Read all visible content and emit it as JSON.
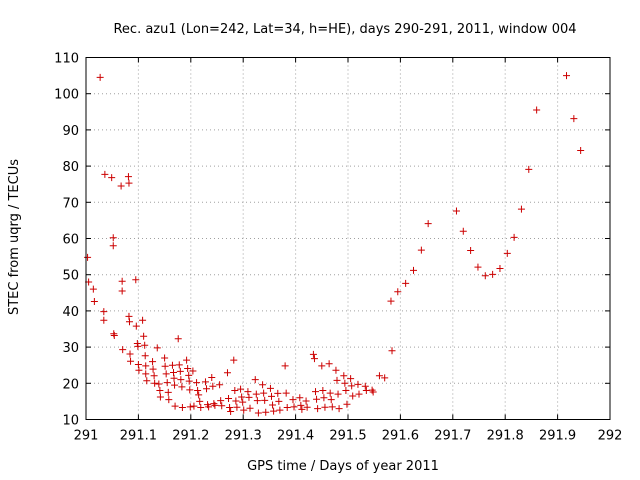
{
  "chart_data": {
    "type": "scatter",
    "title": "Rec. azu1 (Lon=242, Lat=34, h=HE), days 290-291, 2011, window 004",
    "xlabel": "GPS time / Days of year 2011",
    "ylabel": "STEC from uqrg / TECUs",
    "xlim": [
      291,
      292
    ],
    "ylim": [
      10,
      110
    ],
    "x_ticks": [
      291,
      291.1,
      291.2,
      291.3,
      291.4,
      291.5,
      291.6,
      291.7,
      291.8,
      291.9,
      292
    ],
    "x_tick_labels": [
      "291",
      "291.1",
      "291.2",
      "291.3",
      "291.4",
      "291.5",
      "291.6",
      "291.7",
      "291.8",
      "291.9",
      "292"
    ],
    "y_ticks": [
      10,
      20,
      30,
      40,
      50,
      60,
      70,
      80,
      90,
      100,
      110
    ],
    "y_tick_labels": [
      "10",
      "20",
      "30",
      "40",
      "50",
      "60",
      "70",
      "80",
      "90",
      "100",
      "110"
    ],
    "grid": true,
    "marker": "+",
    "marker_color": "#cc0000",
    "points": [
      [
        291.003,
        54.8
      ],
      [
        291.005,
        48.0
      ],
      [
        291.014,
        46.0
      ],
      [
        291.016,
        42.6
      ],
      [
        291.027,
        104.5
      ],
      [
        291.034,
        39.8
      ],
      [
        291.034,
        37.4
      ],
      [
        291.036,
        77.7
      ],
      [
        291.049,
        76.8
      ],
      [
        291.052,
        60.2
      ],
      [
        291.052,
        58.0
      ],
      [
        291.053,
        33.7
      ],
      [
        291.054,
        33.2
      ],
      [
        291.067,
        74.5
      ],
      [
        291.069,
        48.2
      ],
      [
        291.069,
        45.5
      ],
      [
        291.07,
        29.3
      ],
      [
        291.081,
        77.1
      ],
      [
        291.082,
        75.3
      ],
      [
        291.082,
        38.5
      ],
      [
        291.083,
        37.0
      ],
      [
        291.084,
        28.1
      ],
      [
        291.085,
        26.1
      ],
      [
        291.095,
        48.6
      ],
      [
        291.096,
        35.8
      ],
      [
        291.098,
        31.0
      ],
      [
        291.099,
        30.2
      ],
      [
        291.1,
        25.2
      ],
      [
        291.101,
        23.6
      ],
      [
        291.108,
        37.4
      ],
      [
        291.11,
        33.0
      ],
      [
        291.112,
        30.5
      ],
      [
        291.113,
        27.6
      ],
      [
        291.114,
        24.8
      ],
      [
        291.114,
        22.6
      ],
      [
        291.116,
        20.7
      ],
      [
        291.127,
        26.0
      ],
      [
        291.128,
        23.9
      ],
      [
        291.13,
        22.1
      ],
      [
        291.131,
        20.0
      ],
      [
        291.136,
        29.8
      ],
      [
        291.139,
        19.8
      ],
      [
        291.141,
        18.0
      ],
      [
        291.142,
        16.2
      ],
      [
        291.15,
        27.0
      ],
      [
        291.151,
        24.7
      ],
      [
        291.153,
        22.6
      ],
      [
        291.155,
        20.2
      ],
      [
        291.157,
        17.5
      ],
      [
        291.158,
        15.5
      ],
      [
        291.165,
        25.0
      ],
      [
        291.167,
        23.0
      ],
      [
        291.168,
        21.4
      ],
      [
        291.169,
        19.5
      ],
      [
        291.17,
        13.7
      ],
      [
        291.176,
        32.3
      ],
      [
        291.178,
        25.1
      ],
      [
        291.18,
        23.3
      ],
      [
        291.181,
        21.0
      ],
      [
        291.183,
        19.0
      ],
      [
        291.184,
        13.3
      ],
      [
        291.192,
        26.4
      ],
      [
        291.194,
        24.1
      ],
      [
        291.196,
        22.2
      ],
      [
        291.197,
        20.6
      ],
      [
        291.198,
        18.2
      ],
      [
        291.199,
        13.5
      ],
      [
        291.204,
        23.4
      ],
      [
        291.206,
        13.7
      ],
      [
        291.211,
        20.2
      ],
      [
        291.213,
        18.0
      ],
      [
        291.215,
        16.8
      ],
      [
        291.217,
        15.0
      ],
      [
        291.219,
        13.3
      ],
      [
        291.228,
        20.4
      ],
      [
        291.23,
        18.5
      ],
      [
        291.232,
        14.1
      ],
      [
        291.234,
        13.5
      ],
      [
        291.24,
        21.6
      ],
      [
        291.242,
        19.2
      ],
      [
        291.244,
        14.4
      ],
      [
        291.246,
        13.9
      ],
      [
        291.255,
        19.6
      ],
      [
        291.257,
        15.2
      ],
      [
        291.259,
        13.8
      ],
      [
        291.27,
        22.9
      ],
      [
        291.272,
        15.8
      ],
      [
        291.274,
        13.3
      ],
      [
        291.276,
        12.2
      ],
      [
        291.282,
        26.4
      ],
      [
        291.284,
        18.0
      ],
      [
        291.286,
        15.1
      ],
      [
        291.288,
        13.4
      ],
      [
        291.295,
        18.4
      ],
      [
        291.297,
        16.2
      ],
      [
        291.299,
        14.8
      ],
      [
        291.301,
        12.6
      ],
      [
        291.309,
        17.7
      ],
      [
        291.311,
        16.1
      ],
      [
        291.313,
        13.1
      ],
      [
        291.323,
        21.0
      ],
      [
        291.325,
        17.0
      ],
      [
        291.327,
        15.2
      ],
      [
        291.329,
        11.8
      ],
      [
        291.337,
        19.6
      ],
      [
        291.339,
        17.3
      ],
      [
        291.341,
        15.3
      ],
      [
        291.343,
        12.0
      ],
      [
        291.352,
        18.6
      ],
      [
        291.354,
        16.4
      ],
      [
        291.356,
        14.0
      ],
      [
        291.358,
        12.3
      ],
      [
        291.366,
        17.2
      ],
      [
        291.368,
        15.0
      ],
      [
        291.37,
        12.6
      ],
      [
        291.38,
        24.8
      ],
      [
        291.382,
        17.3
      ],
      [
        291.384,
        13.3
      ],
      [
        291.395,
        15.5
      ],
      [
        291.397,
        13.5
      ],
      [
        291.408,
        16.0
      ],
      [
        291.41,
        13.9
      ],
      [
        291.412,
        12.8
      ],
      [
        291.42,
        15.1
      ],
      [
        291.422,
        13.4
      ],
      [
        291.434,
        28.0
      ],
      [
        291.436,
        26.8
      ],
      [
        291.438,
        17.7
      ],
      [
        291.44,
        15.6
      ],
      [
        291.442,
        13.0
      ],
      [
        291.45,
        24.8
      ],
      [
        291.452,
        18.0
      ],
      [
        291.454,
        16.0
      ],
      [
        291.456,
        13.4
      ],
      [
        291.464,
        25.4
      ],
      [
        291.466,
        17.3
      ],
      [
        291.468,
        15.5
      ],
      [
        291.47,
        13.5
      ],
      [
        291.477,
        23.6
      ],
      [
        291.479,
        20.8
      ],
      [
        291.481,
        17.0
      ],
      [
        291.483,
        13.0
      ],
      [
        291.492,
        22.1
      ],
      [
        291.494,
        20.0
      ],
      [
        291.496,
        18.0
      ],
      [
        291.498,
        14.2
      ],
      [
        291.505,
        21.3
      ],
      [
        291.507,
        19.3
      ],
      [
        291.509,
        16.5
      ],
      [
        291.519,
        19.7
      ],
      [
        291.521,
        17.0
      ],
      [
        291.533,
        19.2
      ],
      [
        291.535,
        18.0
      ],
      [
        291.546,
        18.1
      ],
      [
        291.548,
        17.6
      ],
      [
        291.56,
        22.1
      ],
      [
        291.57,
        21.5
      ],
      [
        291.582,
        42.7
      ],
      [
        291.584,
        29.0
      ],
      [
        291.595,
        45.3
      ],
      [
        291.61,
        47.6
      ],
      [
        291.625,
        51.2
      ],
      [
        291.64,
        56.8
      ],
      [
        291.653,
        64.1
      ],
      [
        291.707,
        67.6
      ],
      [
        291.72,
        62.0
      ],
      [
        291.734,
        56.7
      ],
      [
        291.748,
        52.1
      ],
      [
        291.762,
        49.7
      ],
      [
        291.776,
        50.1
      ],
      [
        291.79,
        51.7
      ],
      [
        291.804,
        55.9
      ],
      [
        291.817,
        60.3
      ],
      [
        291.831,
        68.1
      ],
      [
        291.845,
        79.1
      ],
      [
        291.86,
        95.5
      ],
      [
        291.917,
        105.0
      ],
      [
        291.931,
        93.1
      ],
      [
        291.944,
        84.3
      ]
    ]
  }
}
